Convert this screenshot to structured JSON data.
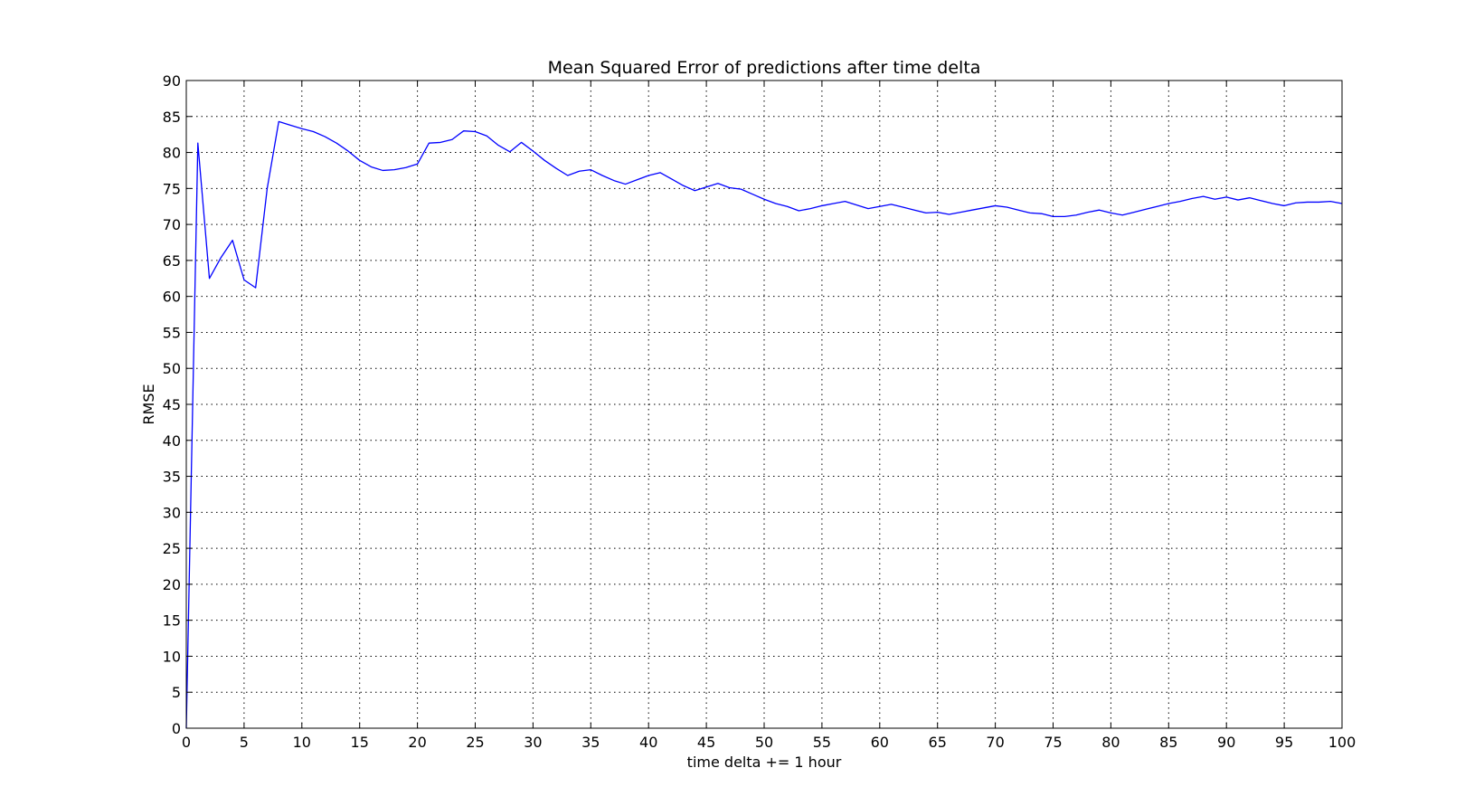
{
  "chart_data": {
    "type": "line",
    "title": "Mean Squared Error of predictions after time delta",
    "xlabel": "time delta += 1 hour",
    "ylabel": "RMSE",
    "xlim": [
      0,
      100
    ],
    "ylim": [
      0,
      90
    ],
    "xticks": [
      0,
      5,
      10,
      15,
      20,
      25,
      30,
      35,
      40,
      45,
      50,
      55,
      60,
      65,
      70,
      75,
      80,
      85,
      90,
      95,
      100
    ],
    "yticks": [
      0,
      5,
      10,
      15,
      20,
      25,
      30,
      35,
      40,
      45,
      50,
      55,
      60,
      65,
      70,
      75,
      80,
      85,
      90
    ],
    "grid": true,
    "grid_style": "dotted",
    "series": [
      {
        "color": "#0000ff",
        "x": [
          0,
          1,
          2,
          3,
          4,
          5,
          6,
          7,
          8,
          9,
          10,
          11,
          12,
          13,
          14,
          15,
          16,
          17,
          18,
          19,
          20,
          21,
          22,
          23,
          24,
          25,
          26,
          27,
          28,
          29,
          30,
          31,
          32,
          33,
          34,
          35,
          36,
          37,
          38,
          39,
          40,
          41,
          42,
          43,
          44,
          45,
          46,
          47,
          48,
          49,
          50,
          51,
          52,
          53,
          54,
          55,
          56,
          57,
          58,
          59,
          60,
          61,
          62,
          63,
          64,
          65,
          66,
          67,
          68,
          69,
          70,
          71,
          72,
          73,
          74,
          75,
          76,
          77,
          78,
          79,
          80,
          81,
          82,
          83,
          84,
          85,
          86,
          87,
          88,
          89,
          90,
          91,
          92,
          93,
          94,
          95,
          96,
          97,
          98,
          99,
          100
        ],
        "y": [
          0,
          81.3,
          62.5,
          65.4,
          67.8,
          62.3,
          61.2,
          75.0,
          84.3,
          83.8,
          83.3,
          82.9,
          82.2,
          81.3,
          80.2,
          78.9,
          78.0,
          77.5,
          77.6,
          77.9,
          78.4,
          81.3,
          81.4,
          81.8,
          83.0,
          82.9,
          82.3,
          81.0,
          80.1,
          81.4,
          80.2,
          78.9,
          77.8,
          76.8,
          77.4,
          77.6,
          76.8,
          76.1,
          75.6,
          76.2,
          76.8,
          77.2,
          76.3,
          75.4,
          74.7,
          75.2,
          75.7,
          75.1,
          74.9,
          74.2,
          73.5,
          72.9,
          72.5,
          71.9,
          72.2,
          72.6,
          72.9,
          73.2,
          72.7,
          72.2,
          72.5,
          72.8,
          72.4,
          72.0,
          71.6,
          71.7,
          71.4,
          71.7,
          72.0,
          72.3,
          72.6,
          72.4,
          72.0,
          71.6,
          71.5,
          71.1,
          71.1,
          71.3,
          71.7,
          72.0,
          71.6,
          71.3,
          71.7,
          72.1,
          72.5,
          72.9,
          73.2,
          73.6,
          73.9,
          73.5,
          73.8,
          73.4,
          73.7,
          73.3,
          72.9,
          72.6,
          73.0,
          73.1,
          73.1,
          73.2,
          72.9
        ]
      }
    ]
  }
}
